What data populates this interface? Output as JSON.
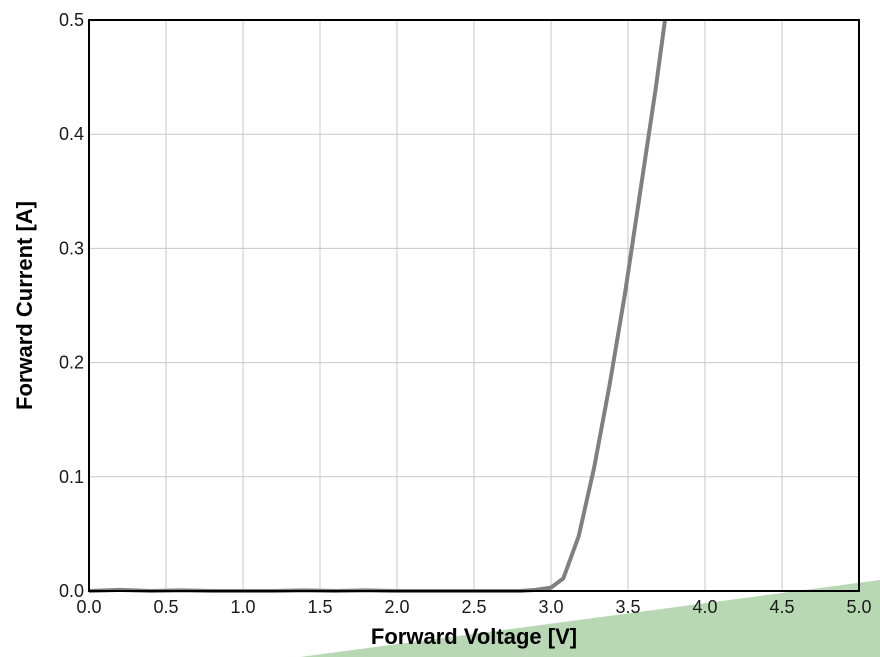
{
  "chart_data": {
    "type": "line",
    "xlabel": "Forward Voltage [V]",
    "ylabel": "Forward Current [A]",
    "xlim": [
      0.0,
      5.0
    ],
    "ylim": [
      0.0,
      0.5
    ],
    "grid": true,
    "x_ticks": [
      "0.0",
      "0.5",
      "1.0",
      "1.5",
      "2.0",
      "2.5",
      "3.0",
      "3.5",
      "4.0",
      "4.5",
      "5.0"
    ],
    "y_ticks": [
      "0.0",
      "0.1",
      "0.2",
      "0.3",
      "0.4",
      "0.5"
    ],
    "series": [
      {
        "x": [
          0.0,
          0.2,
          0.4,
          0.6,
          0.8,
          1.0,
          1.2,
          1.4,
          1.6,
          1.8,
          2.0,
          2.2,
          2.4,
          2.6,
          2.8,
          2.9,
          3.0,
          3.08,
          3.18,
          3.28,
          3.38,
          3.48,
          3.58,
          3.68,
          3.74
        ],
        "y": [
          0.0,
          0.001,
          0.0,
          0.0005,
          0.0,
          0.0,
          0.0,
          0.0005,
          0.0,
          0.0005,
          0.0,
          0.0,
          0.0,
          0.0,
          0.0,
          0.001,
          0.003,
          0.011,
          0.048,
          0.108,
          0.18,
          0.26,
          0.35,
          0.44,
          0.5
        ]
      }
    ],
    "colors": {
      "line": "#808080",
      "grid": "#c8c8c8",
      "frame": "#000000",
      "band": "#b8d8b4"
    }
  }
}
